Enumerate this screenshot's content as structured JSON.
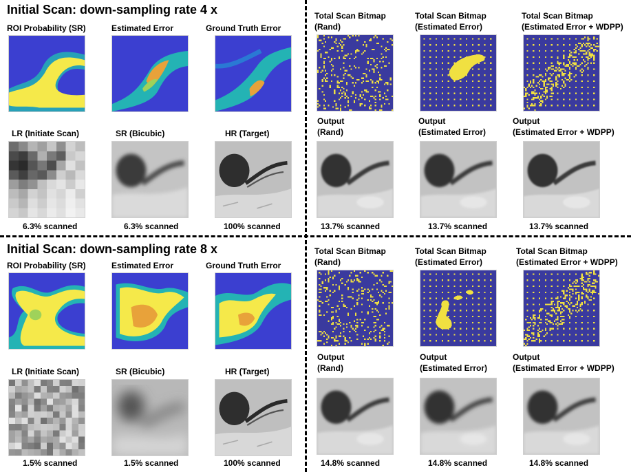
{
  "blocks": [
    {
      "title": "Initial Scan: down-sampling rate 4 x",
      "left": {
        "top_labels": [
          "ROI Probability (SR)",
          "Estimated Error",
          "Ground Truth Error"
        ],
        "bottom_labels": [
          "LR (Initiate Scan)",
          "SR (Bicubic)",
          "HR (Target)"
        ],
        "captions": [
          "6.3% scanned",
          "6.3% scanned",
          "100% scanned"
        ]
      },
      "right": {
        "top_labels": [
          [
            "Total Scan Bitmap",
            "(Rand)"
          ],
          [
            "Total Scan Bitmap",
            "(Estimated Error)"
          ],
          [
            "Total Scan Bitmap",
            "(Estimated Error + WDPP)"
          ]
        ],
        "bottom_labels": [
          [
            "Output",
            "(Rand)"
          ],
          [
            "Output",
            "(Estimated Error)"
          ],
          [
            "Output",
            "(Estimated Error + WDPP)"
          ]
        ],
        "captions": [
          "13.7% scanned",
          "13.7% scanned",
          "13.7% scanned"
        ]
      }
    },
    {
      "title": "Initial Scan: down-sampling rate 8 x",
      "left": {
        "top_labels": [
          "ROI Probability (SR)",
          "Estimated Error",
          "Ground Truth Error"
        ],
        "bottom_labels": [
          "LR (Initiate Scan)",
          "SR (Bicubic)",
          "HR (Target)"
        ],
        "captions": [
          "1.5% scanned",
          "1.5% scanned",
          "100% scanned"
        ]
      },
      "right": {
        "top_labels": [
          [
            "Total Scan Bitmap",
            "(Rand)"
          ],
          [
            "Total Scan Bitmap",
            "(Estimated Error)"
          ],
          [
            "Total Scan Bitmap",
            "(Estimated Error + WDPP)"
          ]
        ],
        "bottom_labels": [
          [
            "Output",
            "(Rand)"
          ],
          [
            "Output",
            "(Estimated Error)"
          ],
          [
            "Output",
            "(Estimated Error + WDPP)"
          ]
        ],
        "captions": [
          "14.8% scanned",
          "14.8% scanned",
          "14.8% scanned"
        ]
      }
    }
  ],
  "colors": {
    "heat_low": "#3b3fd0",
    "heat_mid": "#24b3b4",
    "heat_high": "#f5e94a",
    "bitmap_bg": "#3a3a9e",
    "bitmap_dot": "#f0e041"
  }
}
